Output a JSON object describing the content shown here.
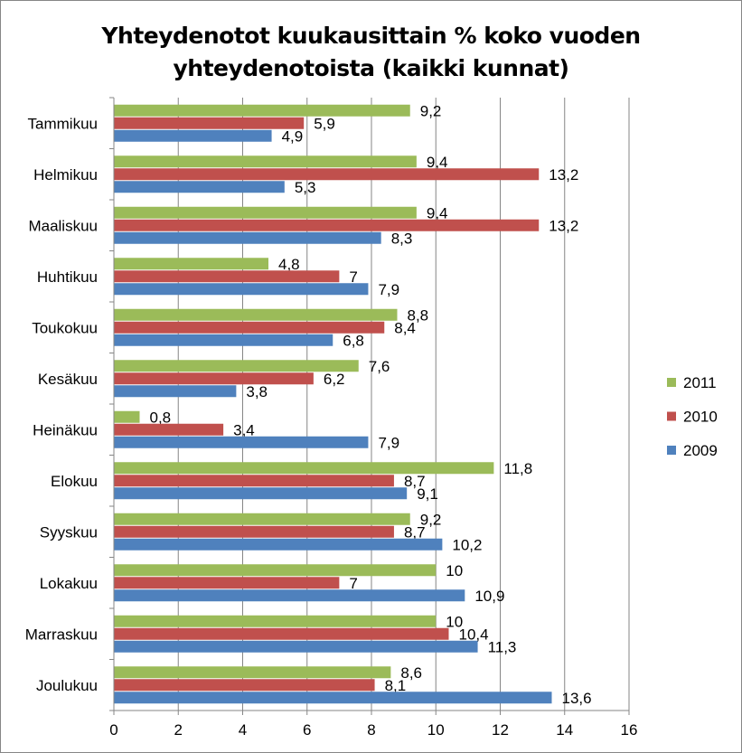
{
  "chart_data": {
    "type": "bar",
    "orientation": "horizontal",
    "title_lines": [
      "Yhteydenotot kuukausittain % koko vuoden",
      "yhteydenotoista (kaikki kunnat)"
    ],
    "categories": [
      "Tammikuu",
      "Helmikuu",
      "Maaliskuu",
      "Huhtikuu",
      "Toukokuu",
      "Kesäkuu",
      "Heinäkuu",
      "Elokuu",
      "Syyskuu",
      "Lokakuu",
      "Marraskuu",
      "Joulukuu"
    ],
    "series": [
      {
        "name": "2011",
        "color": "#9bbb59",
        "values": [
          9.2,
          9.4,
          9.4,
          4.8,
          8.8,
          7.6,
          0.8,
          11.8,
          9.2,
          10,
          10,
          8.6
        ],
        "labels": [
          "9,2",
          "9,4",
          "9,4",
          "4,8",
          "8,8",
          "7,6",
          "0,8",
          "11,8",
          "9,2",
          "10",
          "10",
          "8,6"
        ]
      },
      {
        "name": "2010",
        "color": "#c0504d",
        "values": [
          5.9,
          13.2,
          13.2,
          7,
          8.4,
          6.2,
          3.4,
          8.7,
          8.7,
          7,
          10.4,
          8.1
        ],
        "labels": [
          "5,9",
          "13,2",
          "13,2",
          "7",
          "8,4",
          "6,2",
          "3,4",
          "8,7",
          "8,7",
          "7",
          "10,4",
          "8,1"
        ]
      },
      {
        "name": "2009",
        "color": "#4f81bd",
        "values": [
          4.9,
          5.3,
          8.3,
          7.9,
          6.8,
          3.8,
          7.9,
          9.1,
          10.2,
          10.9,
          11.3,
          13.6
        ],
        "labels": [
          "4,9",
          "5,3",
          "8,3",
          "7,9",
          "6,8",
          "3,8",
          "7,9",
          "9,1",
          "10,2",
          "10,9",
          "11,3",
          "13,6"
        ]
      }
    ],
    "xlim": [
      0,
      16
    ],
    "xticks": [
      0,
      2,
      4,
      6,
      8,
      10,
      12,
      14,
      16
    ],
    "xtick_labels": [
      "0",
      "2",
      "4",
      "6",
      "8",
      "10",
      "12",
      "14",
      "16"
    ],
    "grid": true,
    "legend_position": "right",
    "legend_order": [
      "2011",
      "2010",
      "2009"
    ]
  }
}
